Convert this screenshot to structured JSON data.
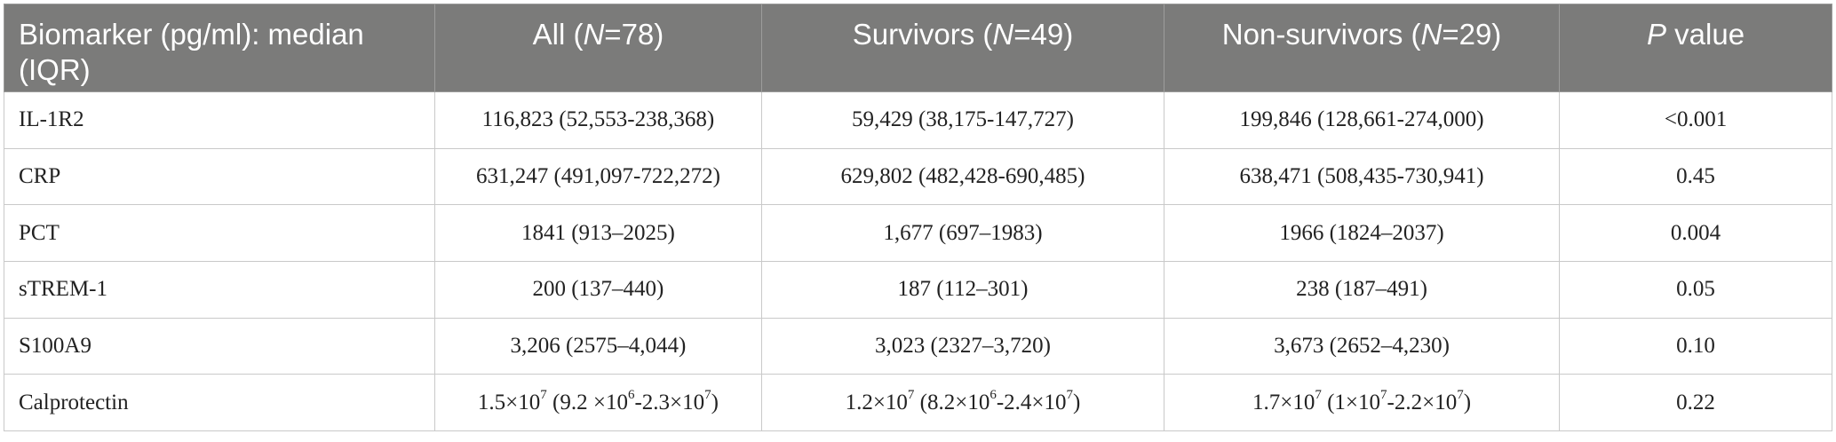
{
  "table": {
    "headers": [
      {
        "text": "Biomarker (pg/ml): median (IQR)"
      },
      {
        "pre": "All (",
        "italic": "N",
        "post": "=78)"
      },
      {
        "pre": "Survivors (",
        "italic": "N",
        "post": "=49)"
      },
      {
        "pre": "Non-survivors (",
        "italic": "N",
        "post": "=29)"
      },
      {
        "pre": "",
        "italic": "P",
        "post": " value"
      }
    ],
    "rows": [
      {
        "biomarker": "IL-1R2",
        "all": "116,823 (52,553-238,368)",
        "survivors": "59,429 (38,175-147,727)",
        "non_survivors": "199,846 (128,661-274,000)",
        "p": "<0.001"
      },
      {
        "biomarker": "CRP",
        "all": "631,247 (491,097-722,272)",
        "survivors": "629,802 (482,428-690,485)",
        "non_survivors": "638,471 (508,435-730,941)",
        "p": "0.45"
      },
      {
        "biomarker": "PCT",
        "all": "1841 (913–2025)",
        "survivors": "1,677 (697–1983)",
        "non_survivors": "1966 (1824–2037)",
        "p": "0.004"
      },
      {
        "biomarker": "sTREM-1",
        "all": "200 (137–440)",
        "survivors": "187 (112–301)",
        "non_survivors": "238 (187–491)",
        "p": "0.05"
      },
      {
        "biomarker": "S100A9",
        "all": "3,206 (2575–4,044)",
        "survivors": "3,023 (2327–3,720)",
        "non_survivors": "3,673 (2652–4,230)",
        "p": "0.10"
      }
    ],
    "calprotectin": {
      "biomarker": "Calprotectin",
      "all": {
        "a": "1.5×10",
        "a_exp": "7",
        "b": " (9.2 ×10",
        "b_exp": "6",
        "c": "-2.3×10",
        "c_exp": "7",
        "d": ")"
      },
      "survivors": {
        "a": "1.2×10",
        "a_exp": "7",
        "b": " (8.2×10",
        "b_exp": "6",
        "c": "-2.4×10",
        "c_exp": "7",
        "d": ")"
      },
      "non_survivors": {
        "a": "1.7×10",
        "a_exp": "7",
        "b": " (1×10",
        "b_exp": "7",
        "c": "-2.2×10",
        "c_exp": "7",
        "d": ")"
      },
      "p": "0.22"
    }
  }
}
